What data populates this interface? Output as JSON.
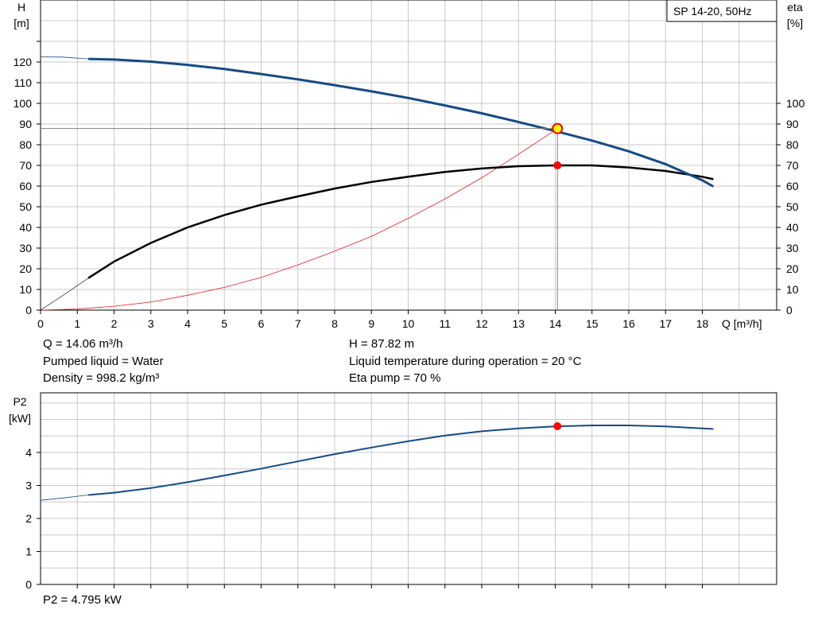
{
  "info": {
    "q": "Q = 14.06 m³/h",
    "liquid": "Pumped liquid = Water",
    "density": "Density = 998.2 kg/m³",
    "h": "H = 87.82 m",
    "temp": "Liquid temperature during operation = 20 °C",
    "eta": "Eta pump = 70 %",
    "p2": "P2 = 4.795 kW"
  },
  "colors": {
    "head_curve": "#154b84",
    "eta_curve": "#000000",
    "system_curve": "#e02020",
    "p2_curve": "#154b84",
    "duty_point": "#ff0000",
    "duty_point_fill": "#ffff00",
    "grid": "#c8c8c8"
  },
  "chart_data": [
    {
      "type": "line",
      "legend_box": "SP 14-20, 50Hz",
      "x_axis": {
        "label": "Q [m³/h]",
        "range": [
          0,
          19
        ],
        "ticks": [
          0,
          1,
          2,
          3,
          4,
          5,
          6,
          7,
          8,
          9,
          10,
          11,
          12,
          13,
          14,
          15,
          16,
          17,
          18
        ]
      },
      "y_left": {
        "label_line1": "H",
        "label_line2": "[m]",
        "range": [
          0,
          120
        ],
        "ticks": [
          0,
          10,
          20,
          30,
          40,
          50,
          60,
          70,
          80,
          90,
          100,
          110,
          120
        ]
      },
      "y_right": {
        "label_line1": "eta",
        "label_line2": "[%]",
        "range": [
          0,
          100
        ],
        "ticks": [
          0,
          10,
          20,
          30,
          40,
          50,
          60,
          70,
          80,
          90,
          100
        ]
      },
      "grid": true,
      "series": [
        {
          "id": "head",
          "axis": "left",
          "points": [
            [
              1.3,
              121.5
            ],
            [
              2,
              121.2
            ],
            [
              3,
              120.2
            ],
            [
              4,
              118.6
            ],
            [
              5,
              116.6
            ],
            [
              6,
              114.2
            ],
            [
              7,
              111.6
            ],
            [
              8,
              108.8
            ],
            [
              9,
              105.8
            ],
            [
              10,
              102.6
            ],
            [
              11,
              99.0
            ],
            [
              12,
              95.2
            ],
            [
              13,
              91.0
            ],
            [
              14,
              86.6
            ],
            [
              15,
              82.0
            ],
            [
              16,
              76.8
            ],
            [
              17,
              70.6
            ],
            [
              18,
              62.8
            ],
            [
              18.3,
              59.8
            ]
          ],
          "extrapolated": [
            [
              0,
              122.5
            ],
            [
              0.6,
              122.4
            ],
            [
              1.3,
              121.5
            ]
          ]
        },
        {
          "id": "eta",
          "axis": "right",
          "points": [
            [
              1.3,
              15.5
            ],
            [
              2,
              23.5
            ],
            [
              3,
              32.5
            ],
            [
              4,
              40.0
            ],
            [
              5,
              46.0
            ],
            [
              6,
              51.0
            ],
            [
              7,
              55.0
            ],
            [
              8,
              58.8
            ],
            [
              9,
              62.0
            ],
            [
              10,
              64.5
            ],
            [
              11,
              66.8
            ],
            [
              12,
              68.5
            ],
            [
              13,
              69.6
            ],
            [
              14,
              70.0
            ],
            [
              15,
              70.0
            ],
            [
              16,
              69.0
            ],
            [
              17,
              67.3
            ],
            [
              18,
              64.5
            ],
            [
              18.3,
              63.3
            ]
          ],
          "extrapolated": [
            [
              0,
              0
            ],
            [
              0.6,
              7
            ],
            [
              1.3,
              15.5
            ]
          ]
        },
        {
          "id": "system",
          "axis": "left",
          "points": [
            [
              0,
              0
            ],
            [
              1,
              0.5
            ],
            [
              2,
              1.9
            ],
            [
              3,
              3.9
            ],
            [
              4,
              7.2
            ],
            [
              5,
              11.0
            ],
            [
              6,
              15.8
            ],
            [
              7,
              21.9
            ],
            [
              8,
              28.5
            ],
            [
              9,
              35.7
            ],
            [
              10,
              44.4
            ],
            [
              11,
              53.8
            ],
            [
              12,
              64.0
            ],
            [
              13,
              75.4
            ],
            [
              14.06,
              87.82
            ]
          ]
        }
      ],
      "duty_point": {
        "q": 14.06,
        "h": 87.82,
        "eta": 70
      }
    },
    {
      "type": "line",
      "y_left": {
        "label_line1": "P2",
        "label_line2": "[kW]",
        "range": [
          0,
          5
        ],
        "ticks": [
          0,
          1,
          2,
          3,
          4
        ]
      },
      "x_axis": {
        "range": [
          0,
          19
        ]
      },
      "grid": true,
      "series": [
        {
          "id": "p2",
          "axis": "left",
          "points": [
            [
              1.3,
              2.71
            ],
            [
              2,
              2.78
            ],
            [
              3,
              2.92
            ],
            [
              4,
              3.1
            ],
            [
              5,
              3.3
            ],
            [
              6,
              3.51
            ],
            [
              7,
              3.73
            ],
            [
              8,
              3.95
            ],
            [
              9,
              4.15
            ],
            [
              10,
              4.34
            ],
            [
              11,
              4.51
            ],
            [
              12,
              4.64
            ],
            [
              13,
              4.73
            ],
            [
              14,
              4.79
            ],
            [
              15,
              4.82
            ],
            [
              16,
              4.82
            ],
            [
              17,
              4.79
            ],
            [
              18,
              4.73
            ],
            [
              18.3,
              4.71
            ]
          ],
          "extrapolated": [
            [
              0,
              2.55
            ],
            [
              0.6,
              2.62
            ],
            [
              1.3,
              2.71
            ]
          ]
        }
      ],
      "duty_point": {
        "q": 14.06,
        "p2": 4.795
      }
    }
  ]
}
